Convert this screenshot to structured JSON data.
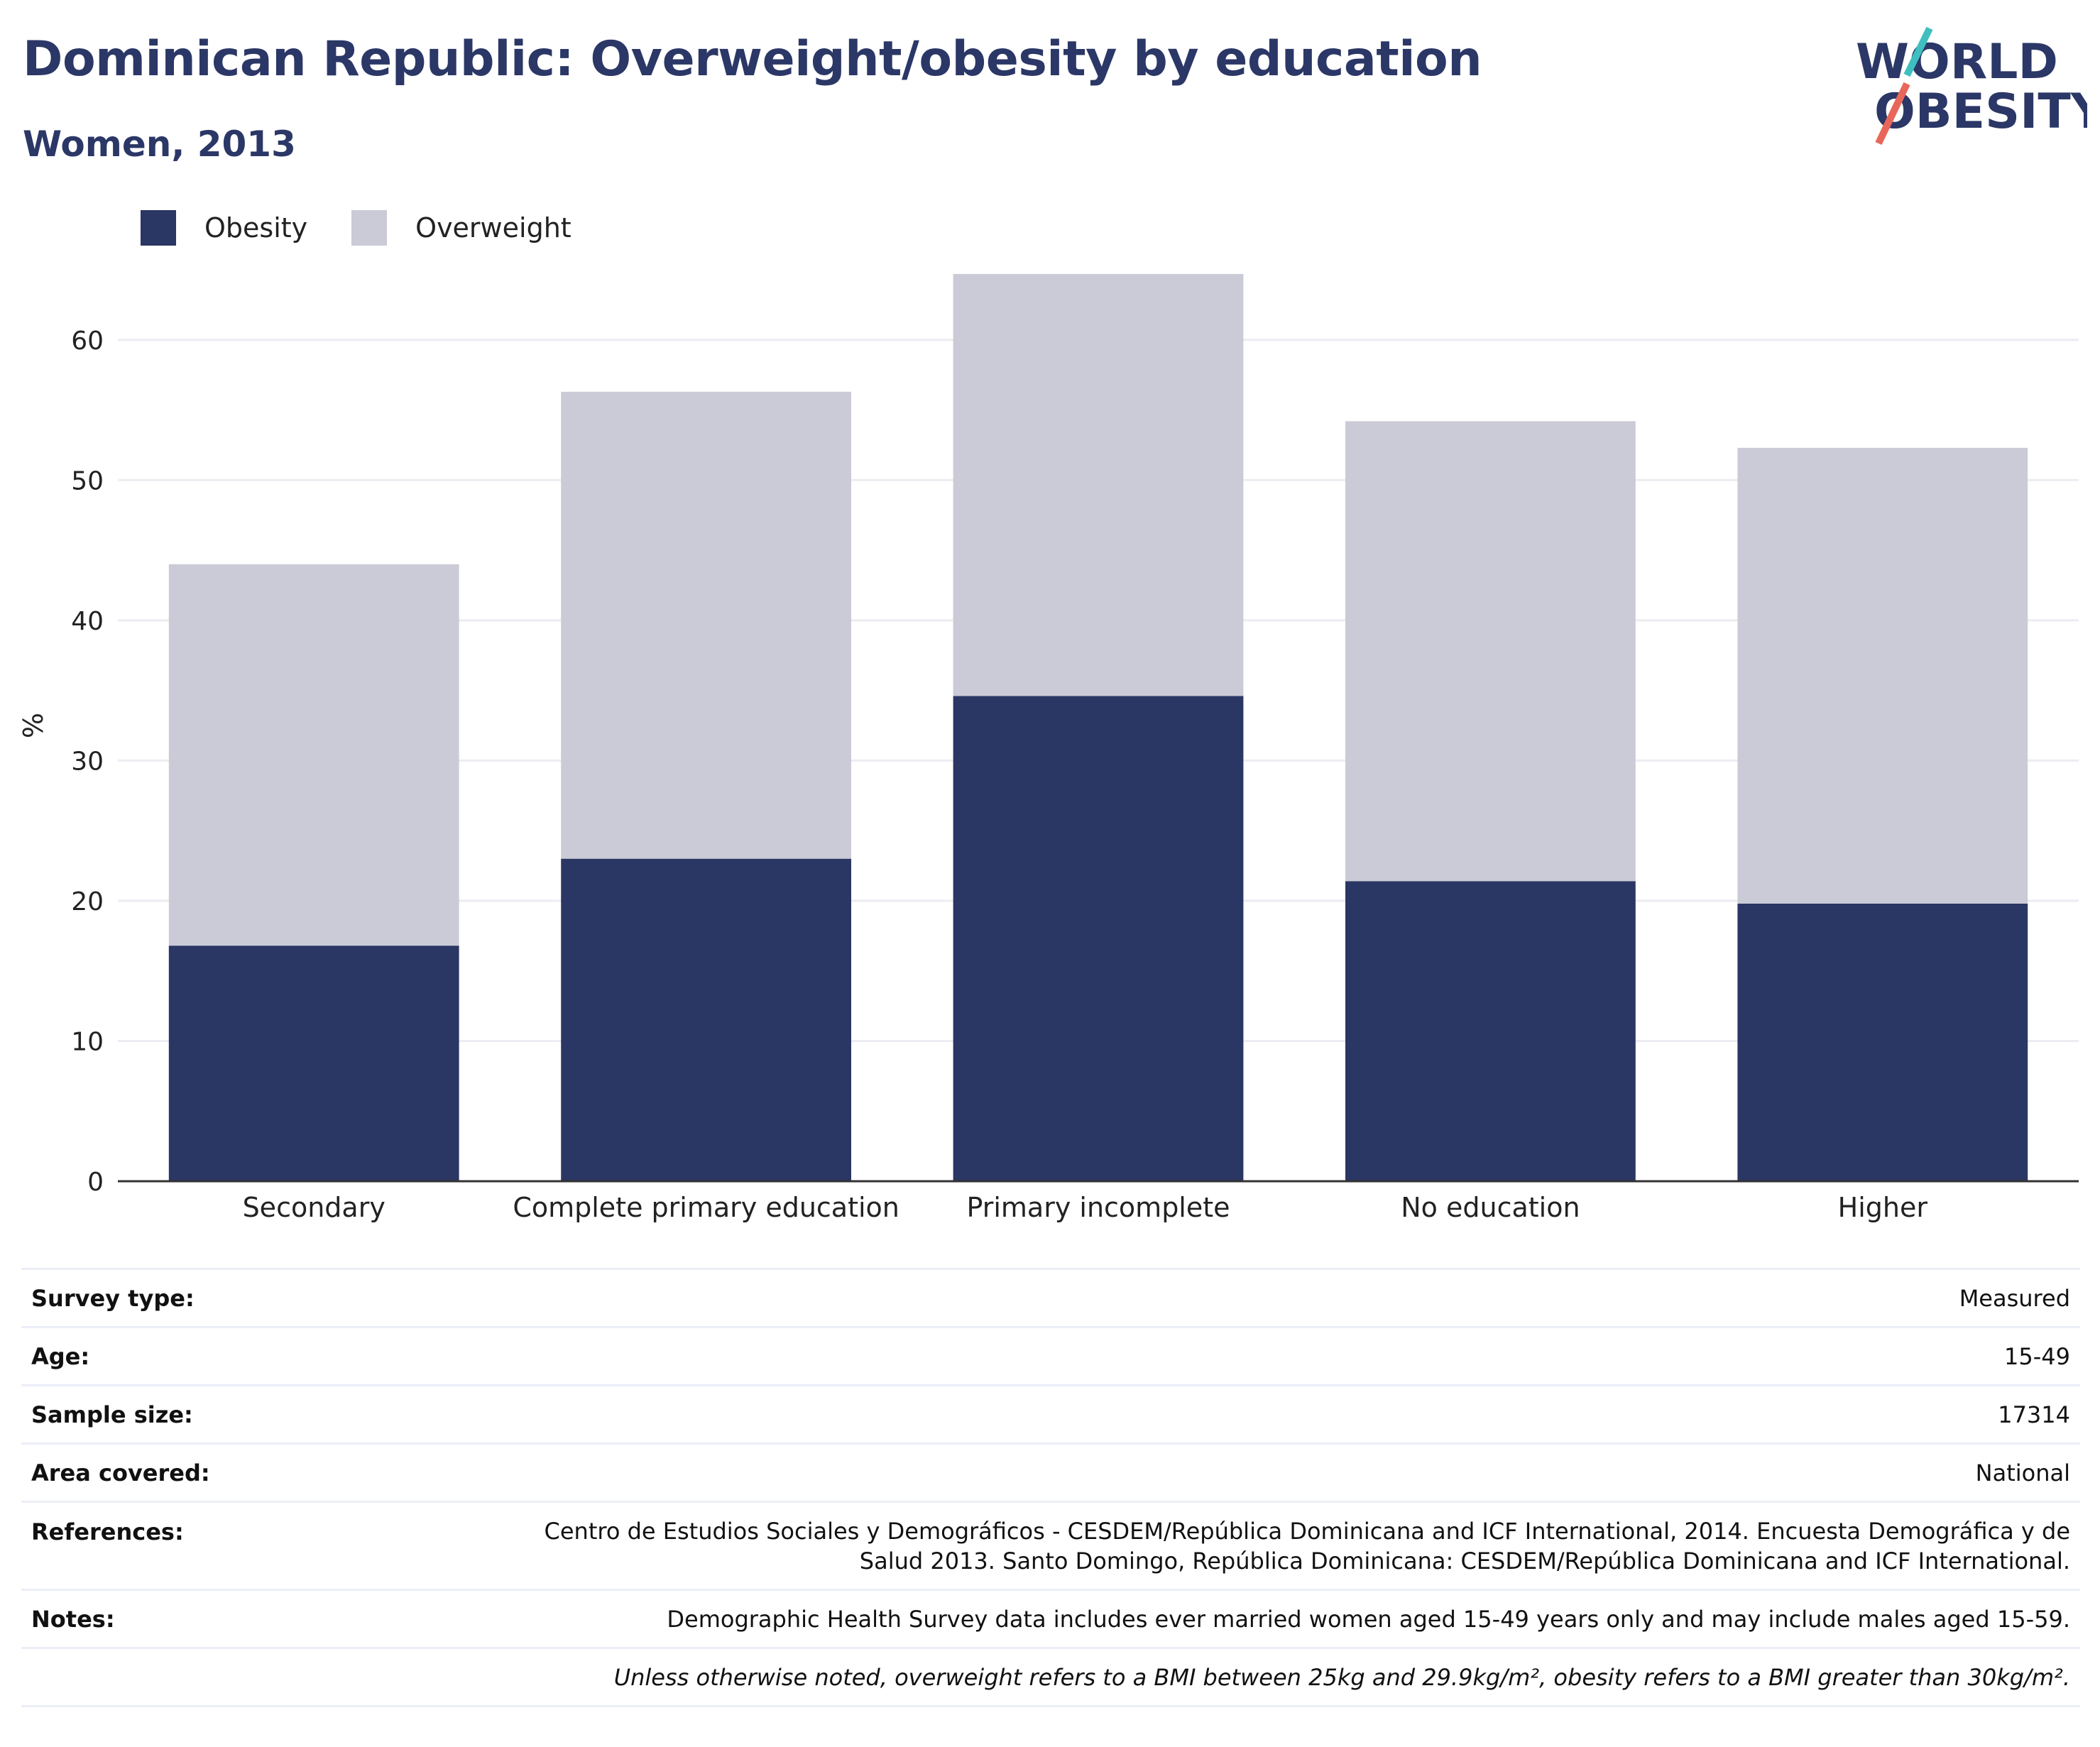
{
  "header": {
    "title": "Dominican Republic: Overweight/obesity by education",
    "subtitle": "Women, 2013"
  },
  "logo": {
    "line1": "WORLD",
    "line2": "OBESITY",
    "accent1": "#3fbfbf",
    "accent2": "#e8675a"
  },
  "colors": {
    "obesity": "#2a3663",
    "overweight": "#cacbd6",
    "grid": "#ececf2",
    "axis": "#333333"
  },
  "chart_data": {
    "type": "bar",
    "stacked": true,
    "categories": [
      "Secondary",
      "Complete primary education",
      "Primary incomplete",
      "No education",
      "Higher"
    ],
    "series": [
      {
        "name": "Obesity",
        "values": [
          16.8,
          23.0,
          34.6,
          21.4,
          19.8
        ]
      },
      {
        "name": "Overweight",
        "values": [
          27.2,
          33.3,
          30.1,
          32.8,
          32.5
        ]
      }
    ],
    "title": "Dominican Republic: Overweight/obesity by education",
    "subtitle": "Women, 2013",
    "xlabel": "",
    "ylabel": "%",
    "ylim": [
      0,
      65
    ],
    "yticks": [
      0,
      10,
      20,
      30,
      40,
      50,
      60
    ],
    "grid": true,
    "legend": "top-left"
  },
  "info": [
    {
      "key": "Survey type:",
      "value": "Measured"
    },
    {
      "key": "Age:",
      "value": "15-49"
    },
    {
      "key": "Sample size:",
      "value": "17314"
    },
    {
      "key": "Area covered:",
      "value": "National"
    },
    {
      "key": "References:",
      "value": "Centro de Estudios Sociales y Demográficos - CESDEM/República Dominicana and ICF International, 2014. Encuesta Demográfica y de",
      "value2": "Salud 2013. Santo Domingo, República Dominicana: CESDEM/República Dominicana and ICF International."
    },
    {
      "key": "Notes:",
      "value": "Demographic Health Survey data includes ever married women aged 15-49 years only and may include males aged 15-59."
    },
    {
      "key": "",
      "value": "Unless otherwise noted, overweight refers to a BMI between 25kg and 29.9kg/m², obesity refers to a BMI greater than 30kg/m²."
    }
  ]
}
